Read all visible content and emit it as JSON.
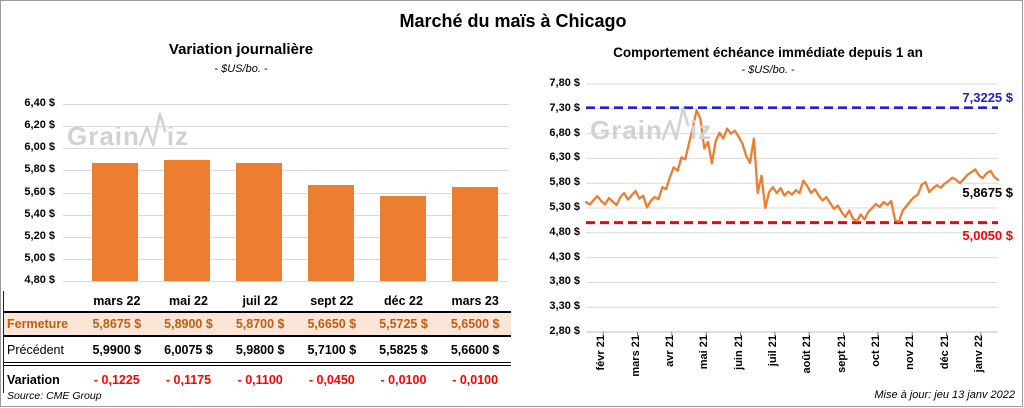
{
  "header": {
    "title": "Marché du maïs à Chicago"
  },
  "watermark": {
    "pre": "Grain",
    "post": "iz"
  },
  "footer": {
    "source": "Source: CME Group",
    "updated": "Mise à jour: jeu 13 janv 2022"
  },
  "colors": {
    "accent_orange": "#ED7D31",
    "high_blue": "#2222CC",
    "low_red": "#FF0000",
    "fermeture_bg": "#FBE5D6",
    "fermeture_text": "#C55A11",
    "grid": "#D9D9D9"
  },
  "table": {
    "col_headers": [
      "mars 22",
      "mai 22",
      "juil 22",
      "sept 22",
      "déc 22",
      "mars 23"
    ],
    "rows": [
      {
        "label": "Fermeture",
        "style": "fermeture",
        "values": [
          "5,8675  $",
          "5,8900  $",
          "5,8700  $",
          "5,6650  $",
          "5,5725  $",
          "5,6500  $"
        ]
      },
      {
        "label": "Précédent",
        "style": "precedent",
        "values": [
          "5,9900  $",
          "6,0075  $",
          "5,9800  $",
          "5,7100  $",
          "5,5825  $",
          "5,6600  $"
        ]
      },
      {
        "label": "Variation",
        "style": "variation",
        "values": [
          "- 0,1225",
          "- 0,1175",
          "- 0,1100",
          "- 0,0450",
          "- 0,0100",
          "- 0,0100"
        ]
      }
    ]
  },
  "chart_data": [
    {
      "type": "bar",
      "title": "Variation  journalière",
      "subtitle": "- $US/bo. -",
      "categories": [
        "mars 22",
        "mai 22",
        "juil 22",
        "sept 22",
        "déc 22",
        "mars 23"
      ],
      "values": [
        5.8675,
        5.89,
        5.87,
        5.665,
        5.5725,
        5.65
      ],
      "ylim": [
        4.8,
        6.4
      ],
      "ytick_step": 0.2,
      "bar_color": "#ED7D31",
      "grid": true,
      "legend": false
    },
    {
      "type": "line",
      "title": "Comportement  échéance  immédiate  depuis 1 an",
      "subtitle": "- $US/bo. -",
      "x_labels": [
        "févr 21",
        "mars 21",
        "avr 21",
        "mai 21",
        "juin 21",
        "juil 21",
        "août 21",
        "sept 21",
        "oct 21",
        "nov 21",
        "déc 21",
        "janv 22"
      ],
      "ylim": [
        2.8,
        7.8
      ],
      "ytick_step": 0.5,
      "line_color": "#ED7D31",
      "grid": true,
      "legend": false,
      "values": [
        5.42,
        5.37,
        5.46,
        5.54,
        5.44,
        5.37,
        5.5,
        5.43,
        5.36,
        5.52,
        5.6,
        5.47,
        5.56,
        5.64,
        5.49,
        5.55,
        5.31,
        5.45,
        5.52,
        5.48,
        5.72,
        5.68,
        5.92,
        6.12,
        6.05,
        6.32,
        6.28,
        6.6,
        6.92,
        7.27,
        7.1,
        6.5,
        6.63,
        6.2,
        6.65,
        6.82,
        6.7,
        6.9,
        6.8,
        6.86,
        6.74,
        6.6,
        6.35,
        6.21,
        6.7,
        5.6,
        5.95,
        5.3,
        5.62,
        5.72,
        5.6,
        5.7,
        5.55,
        5.63,
        5.57,
        5.66,
        5.6,
        5.85,
        5.74,
        5.6,
        5.68,
        5.55,
        5.45,
        5.52,
        5.4,
        5.28,
        5.35,
        5.22,
        5.12,
        5.25,
        5.08,
        5.04,
        5.17,
        5.07,
        5.22,
        5.3,
        5.38,
        5.32,
        5.42,
        5.36,
        5.44,
        5.06,
        5.02,
        5.24,
        5.34,
        5.44,
        5.52,
        5.57,
        5.77,
        5.82,
        5.62,
        5.7,
        5.76,
        5.71,
        5.79,
        5.84,
        5.91,
        5.87,
        5.8,
        5.88,
        5.97,
        6.02,
        6.08,
        5.96,
        5.9,
        6.0,
        6.05,
        5.93,
        5.8675
      ],
      "annotations": {
        "high": {
          "value": 7.3225,
          "label": "7,3225 $",
          "color": "#2222CC",
          "style": "dashed"
        },
        "last": {
          "value": 5.8675,
          "label": "5,8675 $",
          "color": "#000000"
        },
        "low": {
          "value": 5.005,
          "label": "5,0050 $",
          "color": "#FF0000",
          "style": "dashed"
        }
      }
    }
  ]
}
